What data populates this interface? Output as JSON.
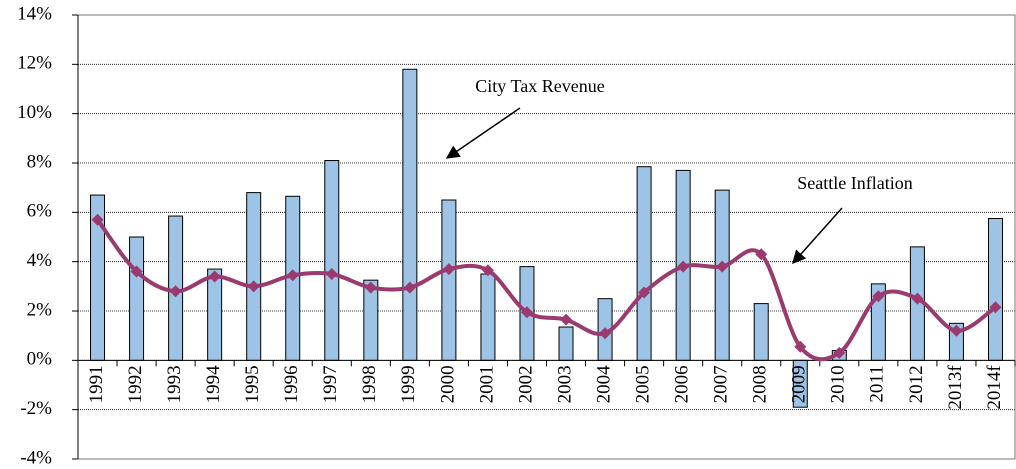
{
  "chart_data": {
    "type": "bar_line",
    "categories": [
      "1991",
      "1992",
      "1993",
      "1994",
      "1995",
      "1996",
      "1997",
      "1998",
      "1999",
      "2000",
      "2001",
      "2002",
      "2003",
      "2004",
      "2005",
      "2006",
      "2007",
      "2008",
      "2009",
      "2010",
      "2011",
      "2012",
      "2013f",
      "2014f"
    ],
    "series": [
      {
        "name": "City Tax Revenue",
        "type": "bar",
        "color": "#9dc3e6",
        "values": [
          6.7,
          5.0,
          5.85,
          3.7,
          6.8,
          6.65,
          8.1,
          3.25,
          11.8,
          6.5,
          3.5,
          3.8,
          1.35,
          2.5,
          7.85,
          7.7,
          6.9,
          2.3,
          -1.9,
          0.4,
          3.1,
          4.6,
          1.5,
          5.75
        ]
      },
      {
        "name": "Seattle Inflation",
        "type": "line",
        "color": "#9b3a6e",
        "values": [
          5.7,
          3.6,
          2.8,
          3.4,
          3.0,
          3.45,
          3.5,
          2.95,
          2.95,
          3.7,
          3.65,
          1.95,
          1.65,
          1.1,
          2.75,
          3.8,
          3.8,
          4.3,
          0.55,
          0.3,
          2.6,
          2.5,
          1.2,
          2.15
        ]
      }
    ],
    "ylim": [
      -4,
      14
    ],
    "yticks": [
      {
        "value": -4,
        "label": "-4%"
      },
      {
        "value": -2,
        "label": "-2%"
      },
      {
        "value": 0,
        "label": "0%"
      },
      {
        "value": 2,
        "label": "2%"
      },
      {
        "value": 4,
        "label": "4%"
      },
      {
        "value": 6,
        "label": "6%"
      },
      {
        "value": 8,
        "label": "8%"
      },
      {
        "value": 10,
        "label": "10%"
      },
      {
        "value": 12,
        "label": "12%"
      },
      {
        "value": 14,
        "label": "14%"
      }
    ],
    "grid": true
  }
}
